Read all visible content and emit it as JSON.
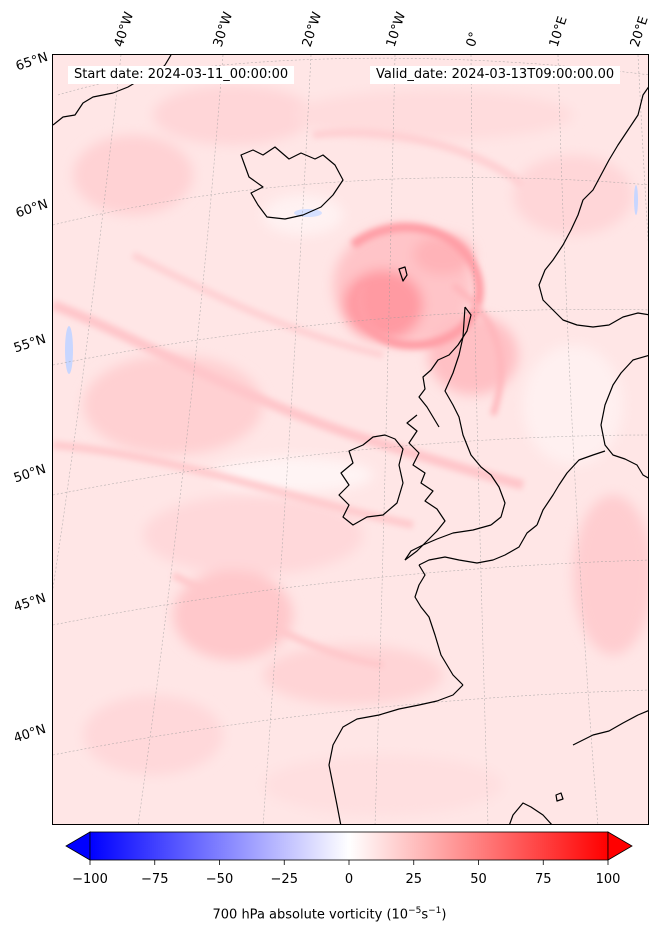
{
  "map": {
    "start_date": "Start date: 2024-03-11_00:00:00",
    "valid_date": "Valid_date: 2024-03-13T09:00:00.00",
    "lon_labels": [
      "40°W",
      "30°W",
      "20°W",
      "10°W",
      "0°",
      "10°E",
      "20°E"
    ],
    "lat_labels": [
      "65°N",
      "60°N",
      "55°N",
      "50°N",
      "45°N",
      "40°N"
    ],
    "variable": "700 hPa absolute vorticity",
    "units_base": "10",
    "units_exp1": "−5",
    "units_s": "s",
    "units_exp2": "−1"
  },
  "colorbar": {
    "min": -100,
    "max": 100,
    "ticks": [
      "−100",
      "−75",
      "−50",
      "−25",
      "0",
      "25",
      "50",
      "75",
      "100"
    ],
    "tick_values": [
      -100,
      -75,
      -50,
      -25,
      0,
      25,
      50,
      75,
      100
    ],
    "color_low": "#0000ff",
    "color_mid": "#ffffff",
    "color_high": "#ff0000",
    "extend": "both",
    "orientation": "horizontal"
  },
  "features": {
    "coastline_color": "#000000",
    "background_field_color": "#ffe6e6",
    "strong_vorticity_color": "#ff9aa2",
    "negative_vorticity_color": "#c8d6ff"
  }
}
